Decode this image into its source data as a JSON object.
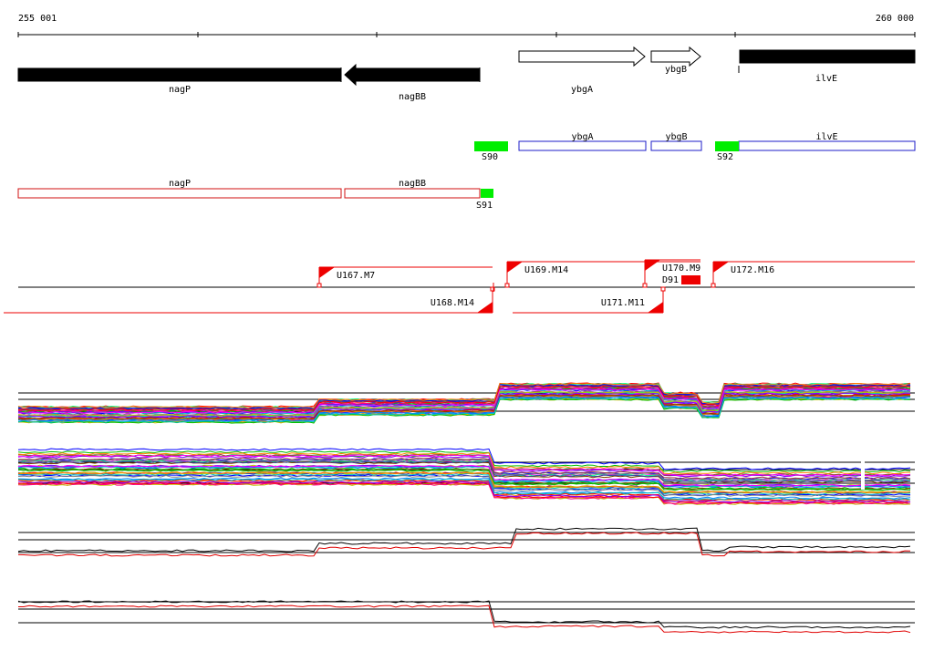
{
  "coords": {
    "start_label": "255 001",
    "end_label": "260 000"
  },
  "colors": {
    "gene_fill": "#000000",
    "operon_box": "#1c1cc8",
    "operon_box_reverse": "#d01010",
    "site_green": "#00ee00",
    "site_red": "#ee0000",
    "track_axis": "#000000",
    "replicate_black": "#000000",
    "replicate_red": "#e00000"
  },
  "genes": [
    {
      "name": "nagP",
      "strand": "reverse",
      "style": "filled"
    },
    {
      "name": "nagBB",
      "strand": "reverse",
      "style": "filled"
    },
    {
      "name": "ybgA",
      "strand": "forward",
      "style": "outline"
    },
    {
      "name": "ybgB",
      "strand": "forward",
      "style": "outline"
    },
    {
      "name": "ilvE",
      "strand": "forward",
      "style": "filled"
    }
  ],
  "forward_units": [
    {
      "name": "ybgA"
    },
    {
      "name": "ybgB"
    },
    {
      "name": "ilvE"
    }
  ],
  "reverse_units": [
    {
      "name": "nagP"
    },
    {
      "name": "nagBB"
    }
  ],
  "sites": [
    {
      "name": "S90",
      "strand": "forward"
    },
    {
      "name": "S92",
      "strand": "forward"
    },
    {
      "name": "S91",
      "strand": "reverse"
    }
  ],
  "transcripts_forward": [
    {
      "name": "U167.M7"
    },
    {
      "name": "U169.M14"
    },
    {
      "name": "U170.M9"
    },
    {
      "name": "U172.M16"
    }
  ],
  "transcripts_reverse": [
    {
      "name": "U168.M14"
    },
    {
      "name": "U171.M11"
    }
  ],
  "down_mark": {
    "name": "D91"
  },
  "expression_tracks": [
    {
      "id": "forward-strand-all",
      "style": "multicolor"
    },
    {
      "id": "reverse-strand-all",
      "style": "multicolor"
    },
    {
      "id": "forward-strand-replicates",
      "style": "black-red"
    },
    {
      "id": "reverse-strand-replicates",
      "style": "black-red"
    }
  ]
}
